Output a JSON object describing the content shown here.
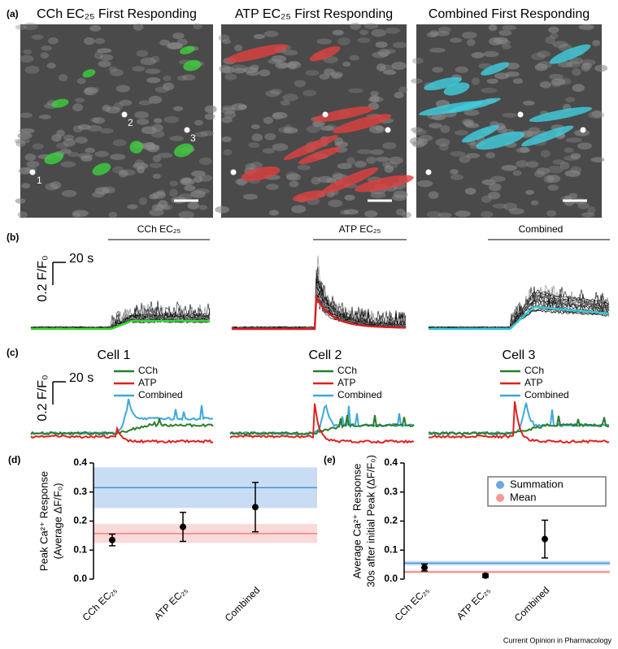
{
  "panel_a": {
    "label": "(a)",
    "titles": [
      "CCh EC₂₅ First Responding",
      "ATP EC₂₅ First Responding",
      "Combined First Responding"
    ],
    "cell_numbers": [
      "1",
      "2",
      "3"
    ]
  },
  "panel_b": {
    "label": "(b)",
    "stimuli": [
      "CCh EC₂₅",
      "ATP EC₂₅",
      "Combined"
    ],
    "scale_time": "20 s",
    "scale_amplitude": "0.2 F/F₀"
  },
  "panel_c": {
    "label": "(c)",
    "cells": [
      "Cell 1",
      "Cell 2",
      "Cell 3"
    ],
    "legend": [
      {
        "name": "CCh",
        "color": "#2a7d2a"
      },
      {
        "name": "ATP",
        "color": "#e0201b"
      },
      {
        "name": "Combined",
        "color": "#3ea8dc"
      }
    ],
    "scale_time": "20 s",
    "scale_amplitude": "0.2 F/F₀"
  },
  "chart_data": [
    {
      "label": "(d)",
      "type": "errorbar",
      "ylabel": [
        "Peak Ca²⁺ Response",
        "(Average ΔF/F₀)"
      ],
      "categories": [
        "CCh EC₂₅",
        "ATP EC₂₅",
        "Combined"
      ],
      "values": [
        0.135,
        0.18,
        0.248
      ],
      "errors": [
        0.02,
        0.05,
        0.085
      ],
      "color": "#000000",
      "ylim": [
        0,
        0.4
      ],
      "yticks": [
        {
          "value": 0,
          "label": "0.0"
        },
        0.1,
        0.2,
        0.3,
        0.4
      ],
      "reference_lines": [
        {
          "value": 0.315,
          "band": [
            0.245,
            0.385
          ],
          "color": "#4a90d9"
        },
        {
          "value": 0.157,
          "band": [
            0.125,
            0.19
          ],
          "color": "#f08080"
        }
      ]
    },
    {
      "label": "(e)",
      "type": "errorbar",
      "ylabel": [
        "Average Ca²⁺ Response",
        "30s after initial Peak (ΔF/F₀)"
      ],
      "categories": [
        "CCh EC₂₅",
        "ATP EC₂₅",
        "Combined"
      ],
      "values": [
        0.04,
        0.012,
        0.138
      ],
      "errors": [
        0.012,
        0.006,
        0.065
      ],
      "color": "#000000",
      "ylim": [
        0,
        0.4
      ],
      "yticks": [
        {
          "value": 0,
          "label": "0.0"
        },
        0.1,
        0.2,
        0.3,
        0.4
      ],
      "legend": "upper right",
      "reference_lines": [
        {
          "name": "Summation",
          "value": 0.055,
          "band": [
            0.047,
            0.063
          ],
          "color": "#4a90d9"
        },
        {
          "name": "Mean",
          "value": 0.025,
          "band": [
            0.02,
            0.03
          ],
          "color": "#f08080"
        }
      ]
    }
  ],
  "footer": "Current Opinion in Pharmacology"
}
